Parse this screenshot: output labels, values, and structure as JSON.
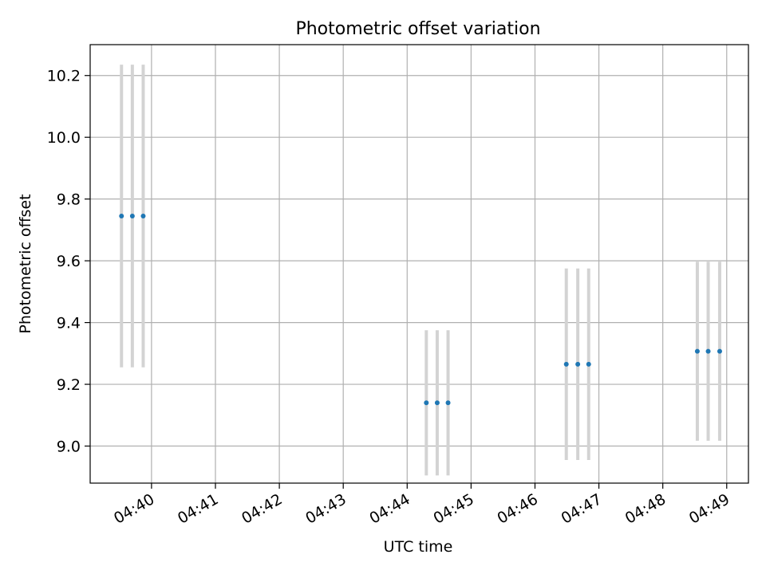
{
  "chart_data": {
    "type": "scatter",
    "title": "Photometric offset variation",
    "xlabel": "UTC time",
    "ylabel": "Photometric offset",
    "x_unit": "minutes after 04:00 UTC",
    "x_ticks": [
      {
        "value": 40,
        "label": "04:40"
      },
      {
        "value": 41,
        "label": "04:41"
      },
      {
        "value": 42,
        "label": "04:42"
      },
      {
        "value": 43,
        "label": "04:43"
      },
      {
        "value": 44,
        "label": "04:44"
      },
      {
        "value": 45,
        "label": "04:45"
      },
      {
        "value": 46,
        "label": "04:46"
      },
      {
        "value": 47,
        "label": "04:47"
      },
      {
        "value": 48,
        "label": "04:48"
      },
      {
        "value": 49,
        "label": "04:49"
      }
    ],
    "y_ticks": [
      {
        "value": 9.0,
        "label": "9.0"
      },
      {
        "value": 9.2,
        "label": "9.2"
      },
      {
        "value": 9.4,
        "label": "9.4"
      },
      {
        "value": 9.6,
        "label": "9.6"
      },
      {
        "value": 9.8,
        "label": "9.8"
      },
      {
        "value": 10.0,
        "label": "10.0"
      },
      {
        "value": 10.2,
        "label": "10.2"
      }
    ],
    "xlim": [
      39.04,
      49.34
    ],
    "ylim": [
      8.88,
      10.3
    ],
    "grid": true,
    "series": [
      {
        "marker_color": "#1f77b4",
        "errorbar_color": "#d3d3d3",
        "points": [
          {
            "x": 39.53,
            "y": 9.745,
            "err": 0.49
          },
          {
            "x": 39.7,
            "y": 9.745,
            "err": 0.49
          },
          {
            "x": 39.87,
            "y": 9.745,
            "err": 0.49
          },
          {
            "x": 44.3,
            "y": 9.14,
            "err": 0.235
          },
          {
            "x": 44.47,
            "y": 9.14,
            "err": 0.235
          },
          {
            "x": 44.64,
            "y": 9.14,
            "err": 0.235
          },
          {
            "x": 46.49,
            "y": 9.265,
            "err": 0.31
          },
          {
            "x": 46.67,
            "y": 9.265,
            "err": 0.31
          },
          {
            "x": 46.84,
            "y": 9.265,
            "err": 0.31
          },
          {
            "x": 48.54,
            "y": 9.307,
            "err": 0.29
          },
          {
            "x": 48.71,
            "y": 9.307,
            "err": 0.29
          },
          {
            "x": 48.89,
            "y": 9.307,
            "err": 0.29
          }
        ]
      }
    ]
  }
}
